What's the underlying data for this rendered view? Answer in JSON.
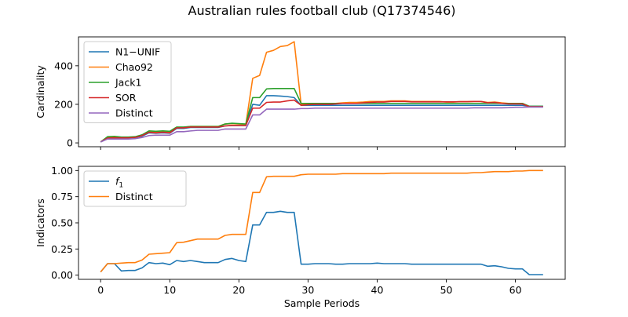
{
  "figure_title": "Australian rules football club (Q17374546)",
  "chart_data": [
    {
      "type": "line",
      "ylabel": "Cardinality",
      "xlabel": "",
      "xlim": [
        -3.2,
        67.2
      ],
      "ylim": [
        -20,
        550
      ],
      "xticks": [
        0,
        10,
        20,
        30,
        40,
        50,
        60
      ],
      "show_xtick_labels": false,
      "yticks": [
        0,
        200,
        400
      ],
      "grid": false,
      "legend_placement": "upper-left",
      "x": [
        0,
        1,
        2,
        3,
        4,
        5,
        6,
        7,
        8,
        9,
        10,
        11,
        12,
        13,
        14,
        15,
        16,
        17,
        18,
        19,
        20,
        21,
        22,
        23,
        24,
        25,
        26,
        27,
        28,
        29,
        30,
        31,
        32,
        33,
        34,
        35,
        36,
        37,
        38,
        39,
        40,
        41,
        42,
        43,
        44,
        45,
        46,
        47,
        48,
        49,
        50,
        51,
        52,
        53,
        54,
        55,
        56,
        57,
        58,
        59,
        60,
        61,
        62,
        63,
        64
      ],
      "series": [
        {
          "name": "N1−UNIF",
          "color": "#1f77b4",
          "values": [
            5,
            22,
            24,
            25,
            26,
            28,
            35,
            52,
            50,
            52,
            50,
            75,
            75,
            80,
            80,
            80,
            80,
            80,
            88,
            90,
            90,
            90,
            200,
            195,
            245,
            245,
            243,
            240,
            235,
            195,
            195,
            195,
            195,
            195,
            195,
            195,
            195,
            195,
            195,
            195,
            195,
            195,
            195,
            195,
            195,
            195,
            195,
            195,
            195,
            195,
            195,
            195,
            195,
            195,
            195,
            195,
            195,
            195,
            195,
            195,
            195,
            195,
            190,
            190,
            190
          ]
        },
        {
          "name": "Chao92",
          "color": "#ff7f0e",
          "values": [
            5,
            30,
            30,
            28,
            28,
            30,
            40,
            60,
            55,
            58,
            55,
            80,
            80,
            85,
            85,
            85,
            85,
            85,
            98,
            100,
            98,
            96,
            335,
            350,
            470,
            480,
            500,
            505,
            525,
            200,
            200,
            202,
            202,
            202,
            205,
            208,
            210,
            210,
            212,
            215,
            215,
            215,
            218,
            218,
            218,
            215,
            215,
            215,
            215,
            215,
            212,
            212,
            214,
            214,
            215,
            215,
            210,
            212,
            208,
            205,
            205,
            205,
            188,
            188,
            188
          ]
        },
        {
          "name": "Jack1",
          "color": "#2ca02c",
          "values": [
            5,
            32,
            34,
            30,
            30,
            32,
            42,
            62,
            60,
            62,
            60,
            82,
            82,
            85,
            85,
            85,
            85,
            85,
            98,
            102,
            100,
            98,
            235,
            235,
            280,
            282,
            282,
            282,
            282,
            205,
            205,
            205,
            205,
            205,
            205,
            205,
            205,
            205,
            205,
            205,
            205,
            205,
            205,
            205,
            205,
            205,
            205,
            205,
            205,
            205,
            205,
            205,
            205,
            205,
            205,
            205,
            205,
            205,
            205,
            205,
            205,
            205,
            190,
            190,
            190
          ]
        },
        {
          "name": "SOR",
          "color": "#d62728",
          "values": [
            5,
            25,
            26,
            26,
            26,
            28,
            38,
            55,
            52,
            55,
            52,
            78,
            78,
            82,
            82,
            82,
            82,
            82,
            88,
            90,
            90,
            90,
            180,
            180,
            210,
            212,
            212,
            218,
            222,
            195,
            198,
            200,
            200,
            200,
            202,
            205,
            205,
            205,
            208,
            210,
            212,
            212,
            215,
            215,
            215,
            213,
            213,
            213,
            213,
            213,
            213,
            213,
            214,
            214,
            215,
            215,
            208,
            210,
            205,
            202,
            202,
            202,
            188,
            188,
            188
          ]
        },
        {
          "name": "Distinct",
          "color": "#9467bd",
          "values": [
            5,
            20,
            20,
            20,
            20,
            22,
            28,
            38,
            40,
            40,
            40,
            58,
            58,
            62,
            65,
            65,
            65,
            65,
            72,
            72,
            72,
            72,
            145,
            145,
            175,
            175,
            175,
            175,
            175,
            178,
            178,
            180,
            180,
            180,
            180,
            180,
            180,
            180,
            180,
            180,
            180,
            180,
            180,
            180,
            180,
            180,
            180,
            180,
            180,
            180,
            180,
            180,
            180,
            180,
            182,
            182,
            182,
            182,
            182,
            183,
            185,
            185,
            186,
            186,
            186
          ]
        }
      ]
    },
    {
      "type": "line",
      "ylabel": "Indicators",
      "xlabel": "Sample Periods",
      "xlim": [
        -3.2,
        67.2
      ],
      "ylim": [
        -0.04,
        1.04
      ],
      "xticks": [
        0,
        10,
        20,
        30,
        40,
        50,
        60
      ],
      "show_xtick_labels": true,
      "yticks": [
        0.0,
        0.25,
        0.5,
        0.75,
        1.0
      ],
      "ytick_labels": [
        "0.00",
        "0.25",
        "0.50",
        "0.75",
        "1.00"
      ],
      "grid": false,
      "legend_placement": "upper-left",
      "x": [
        0,
        1,
        2,
        3,
        4,
        5,
        6,
        7,
        8,
        9,
        10,
        11,
        12,
        13,
        14,
        15,
        16,
        17,
        18,
        19,
        20,
        21,
        22,
        23,
        24,
        25,
        26,
        27,
        28,
        29,
        30,
        31,
        32,
        33,
        34,
        35,
        36,
        37,
        38,
        39,
        40,
        41,
        42,
        43,
        44,
        45,
        46,
        47,
        48,
        49,
        50,
        51,
        52,
        53,
        54,
        55,
        56,
        57,
        58,
        59,
        60,
        61,
        62,
        63,
        64
      ],
      "series": [
        {
          "name": "f1",
          "name_main": "f",
          "name_sub": "1",
          "color": "#1f77b4",
          "values": [
            0.03,
            0.11,
            0.11,
            0.04,
            0.045,
            0.045,
            0.07,
            0.12,
            0.11,
            0.115,
            0.1,
            0.14,
            0.13,
            0.14,
            0.13,
            0.12,
            0.12,
            0.12,
            0.15,
            0.16,
            0.14,
            0.13,
            0.48,
            0.48,
            0.6,
            0.6,
            0.61,
            0.6,
            0.6,
            0.105,
            0.105,
            0.11,
            0.11,
            0.11,
            0.105,
            0.105,
            0.11,
            0.11,
            0.11,
            0.11,
            0.115,
            0.11,
            0.11,
            0.11,
            0.11,
            0.105,
            0.105,
            0.105,
            0.105,
            0.105,
            0.105,
            0.105,
            0.105,
            0.105,
            0.105,
            0.105,
            0.085,
            0.09,
            0.08,
            0.065,
            0.06,
            0.06,
            0.005,
            0.005,
            0.005
          ]
        },
        {
          "name": "Distinct",
          "color": "#ff7f0e",
          "values": [
            0.03,
            0.11,
            0.11,
            0.115,
            0.12,
            0.12,
            0.145,
            0.2,
            0.205,
            0.21,
            0.215,
            0.31,
            0.315,
            0.33,
            0.345,
            0.345,
            0.345,
            0.345,
            0.38,
            0.39,
            0.39,
            0.39,
            0.79,
            0.79,
            0.94,
            0.945,
            0.945,
            0.945,
            0.945,
            0.96,
            0.965,
            0.965,
            0.965,
            0.965,
            0.965,
            0.97,
            0.97,
            0.97,
            0.97,
            0.97,
            0.97,
            0.97,
            0.975,
            0.975,
            0.975,
            0.975,
            0.975,
            0.975,
            0.975,
            0.975,
            0.975,
            0.975,
            0.975,
            0.975,
            0.98,
            0.98,
            0.985,
            0.99,
            0.99,
            0.99,
            0.995,
            0.995,
            1.0,
            1.0,
            1.0
          ]
        }
      ]
    }
  ]
}
